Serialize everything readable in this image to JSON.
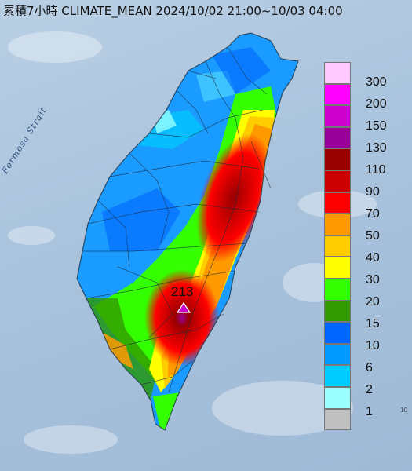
{
  "map": {
    "title": "累積7小時 CLIMATE_MEAN 2024/10/02 21:00~10/03 04:00",
    "strait_label": "Formosa Strait",
    "peak_value": "213",
    "corner_mark": "10",
    "legend": {
      "labels": [
        "300",
        "200",
        "150",
        "130",
        "110",
        "90",
        "70",
        "50",
        "40",
        "30",
        "20",
        "15",
        "10",
        "6",
        "2",
        "1"
      ],
      "colors": [
        "#ffc8ff",
        "#ff00ff",
        "#cc00cc",
        "#990099",
        "#990000",
        "#cc0000",
        "#ff0000",
        "#ff9900",
        "#ffcc00",
        "#ffff00",
        "#33ff00",
        "#339900",
        "#0066ff",
        "#0099ff",
        "#00ccff",
        "#99ffff",
        "#c0c0c0"
      ]
    }
  }
}
